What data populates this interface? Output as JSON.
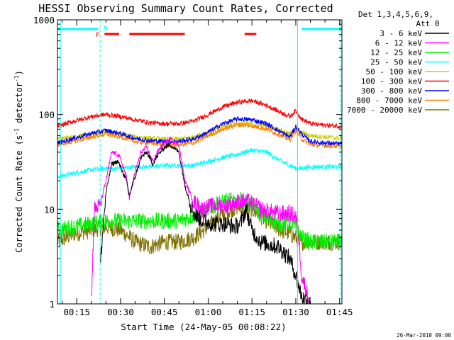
{
  "chart_data": {
    "type": "line",
    "title": "HESSI Observing Summary Count Rates, Corrected",
    "xlabel": "Start Time (24-May-05 00:08:22)",
    "ylabel_main": "Corrected Count Rate (s",
    "ylabel_sup1": "-1",
    "ylabel_mid": " detector",
    "ylabel_sup2": "-1",
    "ylabel_end": ")",
    "yscale": "log",
    "ylim": [
      1,
      1000
    ],
    "xlim_minutes": [
      8.4,
      105.8
    ],
    "xticks": [
      {
        "label": "00:15",
        "value": 15
      },
      {
        "label": "00:30",
        "value": 30
      },
      {
        "label": "00:45",
        "value": 45
      },
      {
        "label": "01:00",
        "value": 60
      },
      {
        "label": "01:15",
        "value": 75
      },
      {
        "label": "01:30",
        "value": 90
      },
      {
        "label": "01:45",
        "value": 105
      }
    ],
    "yticks": [
      {
        "label": "1",
        "value": 1
      },
      {
        "label": "10",
        "value": 10
      },
      {
        "label": "100",
        "value": 100
      },
      {
        "label": "1000",
        "value": 1000
      }
    ],
    "legend_header": [
      "Det 1,3,4,5,6,9,",
      "Att 0"
    ],
    "legend_position": "right",
    "timestamp": "26-Mar-2010 09:00",
    "series": [
      {
        "name": "3 - 6 keV",
        "color": "#000000",
        "x": [
          8.4,
          14,
          20,
          23,
          25,
          27,
          29,
          30,
          32,
          33,
          35,
          37,
          39,
          41,
          43,
          45,
          47,
          50,
          52,
          55,
          58,
          62,
          66,
          69,
          71,
          73,
          75,
          78,
          84,
          88,
          90,
          92,
          95,
          100,
          105.8
        ],
        "y": [
          null,
          null,
          null,
          2.5,
          15,
          30,
          32,
          28,
          20,
          14,
          22,
          35,
          40,
          30,
          38,
          45,
          48,
          40,
          18,
          9,
          7.5,
          7,
          7,
          6.5,
          7,
          10,
          6,
          4.5,
          4,
          3,
          2,
          1.2,
          1,
          null,
          null
        ]
      },
      {
        "name": "6 - 12 keV",
        "color": "#ff00ff",
        "x": [
          8.4,
          14,
          20,
          21,
          23,
          25,
          27,
          29,
          30,
          32,
          33,
          35,
          37,
          39,
          41,
          43,
          45,
          47,
          50,
          52,
          55,
          58,
          62,
          66,
          70,
          74,
          78,
          84,
          88,
          90,
          91,
          92,
          95,
          100,
          105.8
        ],
        "y": [
          null,
          null,
          1,
          10,
          11,
          20,
          40,
          38,
          34,
          22,
          13,
          25,
          40,
          45,
          32,
          42,
          50,
          55,
          48,
          20,
          12,
          10,
          11,
          11,
          12,
          12,
          10,
          9,
          9,
          8.5,
          5,
          2,
          1,
          null,
          null
        ]
      },
      {
        "name": "12 - 25 keV",
        "color": "#00ee00",
        "x": [
          8.4,
          14,
          20,
          25,
          30,
          35,
          40,
          45,
          50,
          55,
          60,
          65,
          70,
          75,
          80,
          85,
          88,
          90,
          92,
          95,
          100,
          105.8
        ],
        "y": [
          6,
          6.5,
          7,
          7.5,
          7.5,
          7.5,
          7.5,
          7.5,
          7.5,
          8.5,
          10,
          12,
          13,
          11,
          8,
          7,
          7,
          6.5,
          5,
          4.5,
          4.5,
          4.5
        ]
      },
      {
        "name": "25 - 50 keV",
        "color": "#00ffff",
        "x": [
          8.4,
          14,
          20,
          25,
          30,
          35,
          40,
          45,
          50,
          55,
          60,
          65,
          70,
          75,
          80,
          85,
          88,
          90,
          92,
          95,
          100,
          105.8
        ],
        "y": [
          22,
          24,
          26,
          27,
          27,
          28,
          28,
          29,
          29,
          29,
          32,
          35,
          38,
          42,
          40,
          32,
          29,
          27,
          27,
          28,
          28,
          28
        ]
      },
      {
        "name": "50 - 100 keV",
        "color": "#cccc00",
        "x": [
          8.4,
          14,
          20,
          25,
          30,
          35,
          40,
          45,
          50,
          55,
          60,
          65,
          70,
          75,
          80,
          85,
          88,
          90,
          92,
          95,
          100,
          105.8
        ],
        "y": [
          55,
          58,
          62,
          65,
          62,
          58,
          56,
          55,
          55,
          58,
          65,
          75,
          80,
          80,
          75,
          68,
          62,
          70,
          65,
          60,
          58,
          56
        ]
      },
      {
        "name": "100 - 300 keV",
        "color": "#ff0000",
        "x": [
          8.4,
          14,
          20,
          25,
          30,
          35,
          40,
          45,
          50,
          55,
          60,
          65,
          70,
          75,
          80,
          85,
          88,
          90,
          92,
          95,
          100,
          105.8
        ],
        "y": [
          75,
          85,
          95,
          100,
          95,
          88,
          82,
          80,
          80,
          85,
          100,
          120,
          135,
          140,
          125,
          105,
          95,
          110,
          90,
          80,
          77,
          75
        ]
      },
      {
        "name": "300 - 800 keV",
        "color": "#0000ff",
        "x": [
          8.4,
          14,
          20,
          25,
          30,
          35,
          40,
          45,
          50,
          55,
          60,
          65,
          70,
          75,
          80,
          85,
          88,
          90,
          92,
          95,
          100,
          105.8
        ],
        "y": [
          50,
          56,
          63,
          68,
          63,
          56,
          53,
          52,
          52,
          55,
          65,
          80,
          90,
          88,
          80,
          65,
          58,
          75,
          62,
          52,
          50,
          49
        ]
      },
      {
        "name": "800 - 7000 keV",
        "color": "#ff8000",
        "x": [
          8.4,
          14,
          20,
          25,
          30,
          35,
          40,
          45,
          50,
          55,
          60,
          65,
          70,
          75,
          80,
          85,
          88,
          90,
          92,
          95,
          100,
          105.8
        ],
        "y": [
          48,
          52,
          58,
          62,
          58,
          52,
          50,
          48,
          48,
          50,
          60,
          70,
          78,
          76,
          70,
          60,
          54,
          68,
          55,
          48,
          47,
          46
        ]
      },
      {
        "name": "7000 - 20000 keV",
        "color": "#807000",
        "x": [
          8.4,
          14,
          20,
          25,
          30,
          35,
          40,
          45,
          50,
          55,
          60,
          65,
          70,
          75,
          80,
          85,
          88,
          90,
          92,
          95,
          100,
          105.8
        ],
        "y": [
          4.5,
          5.5,
          6,
          6.5,
          6,
          4.5,
          4,
          4.5,
          4.5,
          5,
          6.5,
          9,
          10.5,
          10,
          7.5,
          6,
          5.5,
          5,
          4.5,
          4.5,
          4.5,
          4.5
        ]
      }
    ],
    "flags": {
      "n_label": "N",
      "f_label": "F",
      "cyan_segments": [
        [
          8.4,
          22.4
        ],
        [
          92,
          105.8
        ]
      ],
      "red_segments": [
        [
          24.5,
          29.5
        ],
        [
          33,
          52
        ],
        [
          72.5,
          76.5
        ]
      ],
      "vertical_lines": [
        {
          "x": 9.4,
          "style": "solid"
        },
        {
          "x": 23,
          "style": "dashed"
        },
        {
          "x": 90.6,
          "style": "solid"
        },
        {
          "x": 105.2,
          "style": "dashed"
        }
      ]
    }
  }
}
